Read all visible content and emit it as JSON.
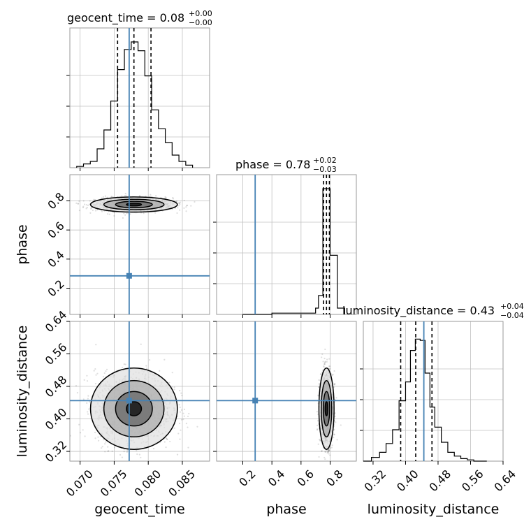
{
  "chart_data": {
    "type": "corner",
    "truth_color": "#4682b4",
    "params": [
      "geocent_time",
      "phase",
      "luminosity_distance"
    ],
    "axis_labels": {
      "geocent_time": "geocent_time",
      "phase": "phase",
      "luminosity_distance": "luminosity_distance"
    },
    "titles": [
      {
        "param": "geocent_time",
        "text": "geocent_time = 0.08",
        "plus": "+0.00",
        "minus": "−0.00"
      },
      {
        "param": "phase",
        "text": "phase = 0.78",
        "plus": "+0.02",
        "minus": "−0.03"
      },
      {
        "param": "luminosity_distance",
        "text": "luminosity_distance = 0.43",
        "plus": "+0.04",
        "minus": "−0.04"
      }
    ],
    "ranges": {
      "geocent_time": [
        0.0685,
        0.089
      ],
      "phase": [
        0.02,
        0.98
      ],
      "luminosity_distance": [
        0.296,
        0.64
      ]
    },
    "ticks": {
      "geocent_time": [
        "0.070",
        "0.075",
        "0.080",
        "0.085"
      ],
      "phase": [
        "0.2",
        "0.4",
        "0.6",
        "0.8"
      ],
      "luminosity_distance": [
        "0.32",
        "0.40",
        "0.48",
        "0.56",
        "0.64"
      ]
    },
    "truths": {
      "geocent_time": 0.0772,
      "phase": 0.285,
      "luminosity_distance": 0.445
    },
    "quantiles": {
      "geocent_time": [
        0.0755,
        0.0779,
        0.0804
      ],
      "phase": [
        0.755,
        0.775,
        0.795
      ],
      "luminosity_distance": [
        0.388,
        0.425,
        0.465
      ]
    },
    "histograms": {
      "geocent_time": {
        "edges": [
          0.0695,
          0.0705,
          0.0715,
          0.0725,
          0.0735,
          0.0745,
          0.0755,
          0.0765,
          0.0775,
          0.0785,
          0.0795,
          0.0805,
          0.0815,
          0.0825,
          0.0835,
          0.0845,
          0.0855,
          0.0865
        ],
        "counts": [
          0.01,
          0.03,
          0.05,
          0.15,
          0.3,
          0.53,
          0.78,
          0.94,
          1.0,
          0.93,
          0.73,
          0.46,
          0.31,
          0.2,
          0.1,
          0.05,
          0.02
        ]
      },
      "phase": {
        "edges": [
          0.2,
          0.4,
          0.5,
          0.6,
          0.7,
          0.72,
          0.75,
          0.8,
          0.85,
          0.9
        ],
        "counts": [
          0.0,
          0.01,
          0.01,
          0.01,
          0.05,
          0.15,
          1.0,
          0.47,
          0.05
        ]
      },
      "luminosity_distance": {
        "edges": [
          0.296,
          0.316,
          0.336,
          0.352,
          0.368,
          0.384,
          0.4,
          0.412,
          0.424,
          0.436,
          0.448,
          0.46,
          0.472,
          0.488,
          0.504,
          0.52,
          0.536,
          0.552,
          0.568,
          0.584,
          0.6
        ],
        "counts": [
          0.0,
          0.03,
          0.07,
          0.14,
          0.25,
          0.48,
          0.63,
          0.88,
          0.97,
          0.96,
          0.7,
          0.43,
          0.27,
          0.15,
          0.07,
          0.04,
          0.02,
          0.01,
          0.0,
          0.0
        ]
      }
    },
    "grid": true
  }
}
